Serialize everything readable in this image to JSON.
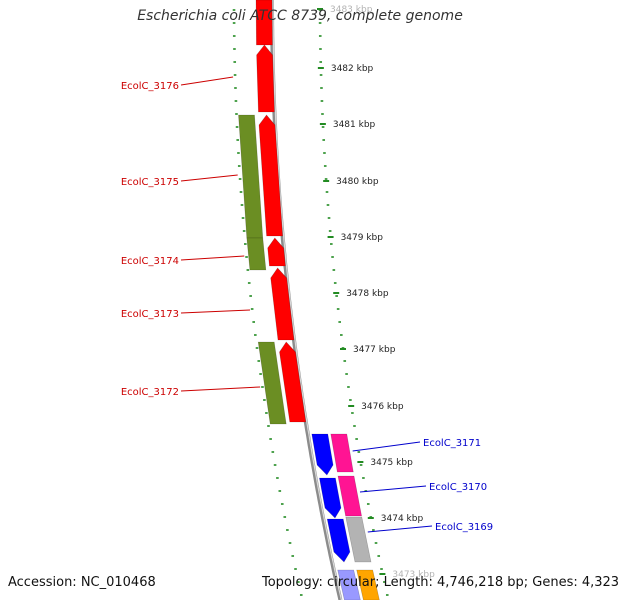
{
  "map": {
    "title": "Escherichia coli ATCC 8739, complete genome",
    "accession_label": "Accession: NC_010468",
    "stats_label": "Topology: circular; Length: 4,746,218 bp; Genes: 4,323"
  },
  "colors": {
    "red_gene": "#ff0000",
    "olive_gene": "#6b8e23",
    "blue_gene": "#0000ff",
    "pink_gene": "#ff1493",
    "gray_gene": "#b3b3b3",
    "backbone": "#8c8c8c",
    "dotted_ring": "#228b22",
    "left_label": "#cc0000",
    "right_label": "#0000cc"
  },
  "ticks": [
    {
      "label": "3483 kbp",
      "faded": true
    },
    {
      "label": "3482 kbp"
    },
    {
      "label": "3481 kbp"
    },
    {
      "label": "3480 kbp"
    },
    {
      "label": "3479 kbp"
    },
    {
      "label": "3478 kbp"
    },
    {
      "label": "3477 kbp"
    },
    {
      "label": "3476 kbp"
    },
    {
      "label": "3475 kbp"
    },
    {
      "label": "3474 kbp"
    },
    {
      "label": "3473 kbp",
      "faded": true
    }
  ],
  "gene_labels_left": [
    "EcolC_3176",
    "EcolC_3175",
    "EcolC_3174",
    "EcolC_3173",
    "EcolC_3172"
  ],
  "gene_labels_right": [
    "EcolC_3171",
    "EcolC_3170",
    "EcolC_3169"
  ]
}
